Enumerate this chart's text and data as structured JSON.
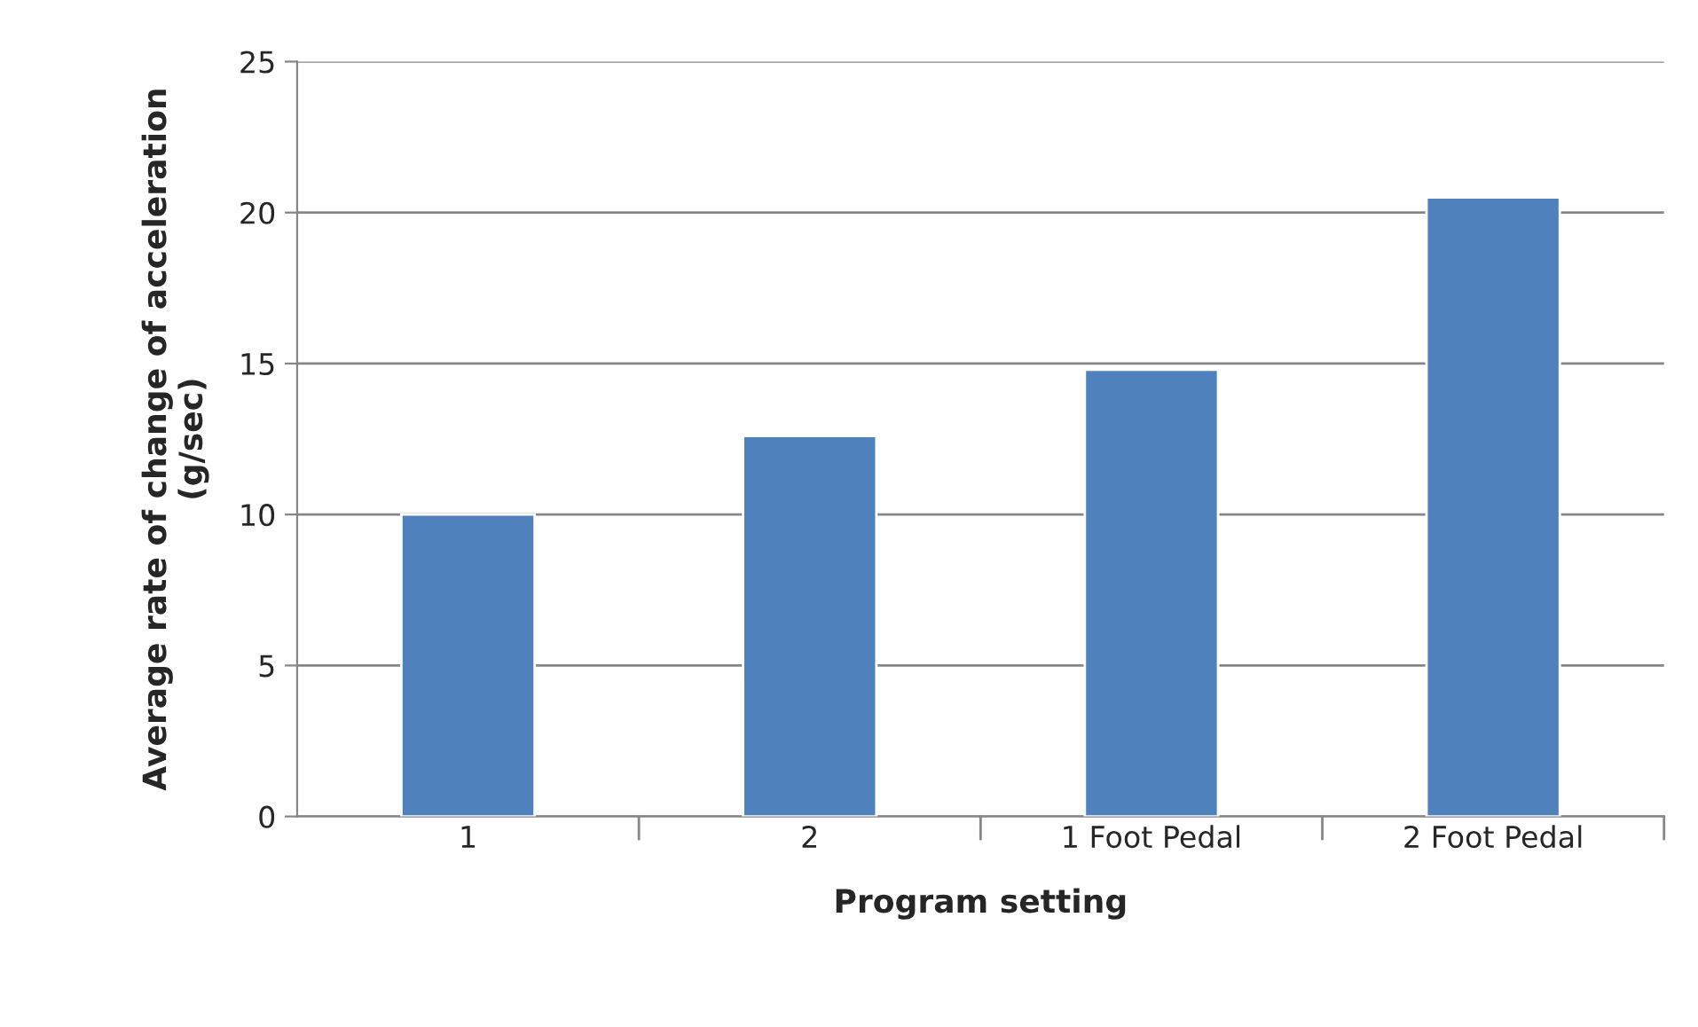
{
  "chart_data": {
    "type": "bar",
    "xlabel": "Program setting",
    "ylabel": "Average rate of change of acceleration\n(g/sec)",
    "categories": [
      "1",
      "2",
      "1 Foot Pedal",
      "2 Foot Pedal"
    ],
    "values": [
      10.0,
      12.6,
      14.8,
      20.5
    ],
    "color": "#4f81bd",
    "ylim": [
      0,
      25
    ],
    "yticks": [
      0,
      5,
      10,
      15,
      20,
      25
    ],
    "grid": "y",
    "legend": false
  }
}
